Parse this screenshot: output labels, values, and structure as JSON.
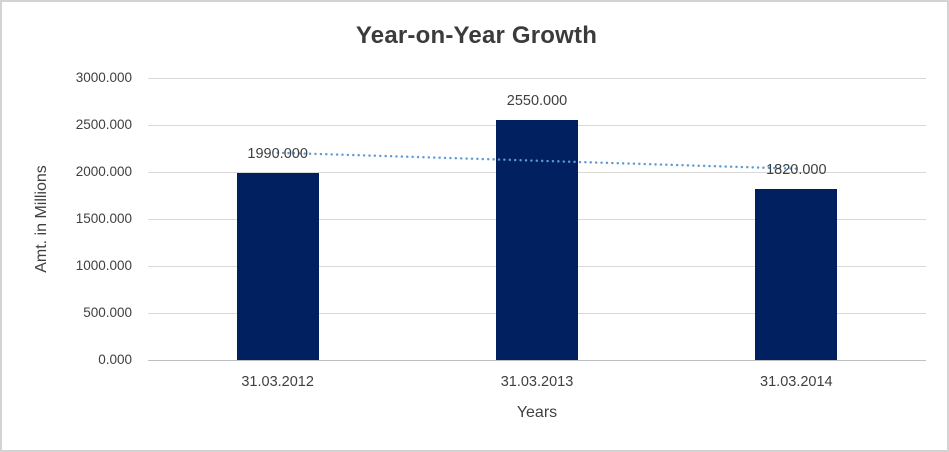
{
  "chart_data": {
    "type": "bar",
    "title": "Year-on-Year Growth",
    "xlabel": "Years",
    "ylabel": "Amt. in Millions",
    "categories": [
      "31.03.2012",
      "31.03.2013",
      "31.03.2014"
    ],
    "values": [
      1990,
      2550,
      1820
    ],
    "bar_labels": [
      "1990.000",
      "2550.000",
      "1820.000"
    ],
    "y_ticks": [
      0,
      500,
      1000,
      1500,
      2000,
      2500,
      3000
    ],
    "y_tick_labels": [
      "0.000",
      "500.000",
      "1000.000",
      "1500.000",
      "2000.000",
      "2500.000",
      "3000.000"
    ],
    "ylim": [
      0,
      3000
    ],
    "grid": true,
    "legend": "none",
    "trendline": {
      "type": "linear",
      "style": "dotted",
      "start_value": 2205,
      "end_value": 2035
    },
    "colors": {
      "bar": "#002060",
      "trendline": "#5B9BD5",
      "gridline": "#D9D9D9",
      "axis_line": "#BFBFBF",
      "text": "#404040",
      "title_text": "#3B3B3B",
      "border": "#D3D3D3",
      "background": "#FFFFFF"
    }
  }
}
